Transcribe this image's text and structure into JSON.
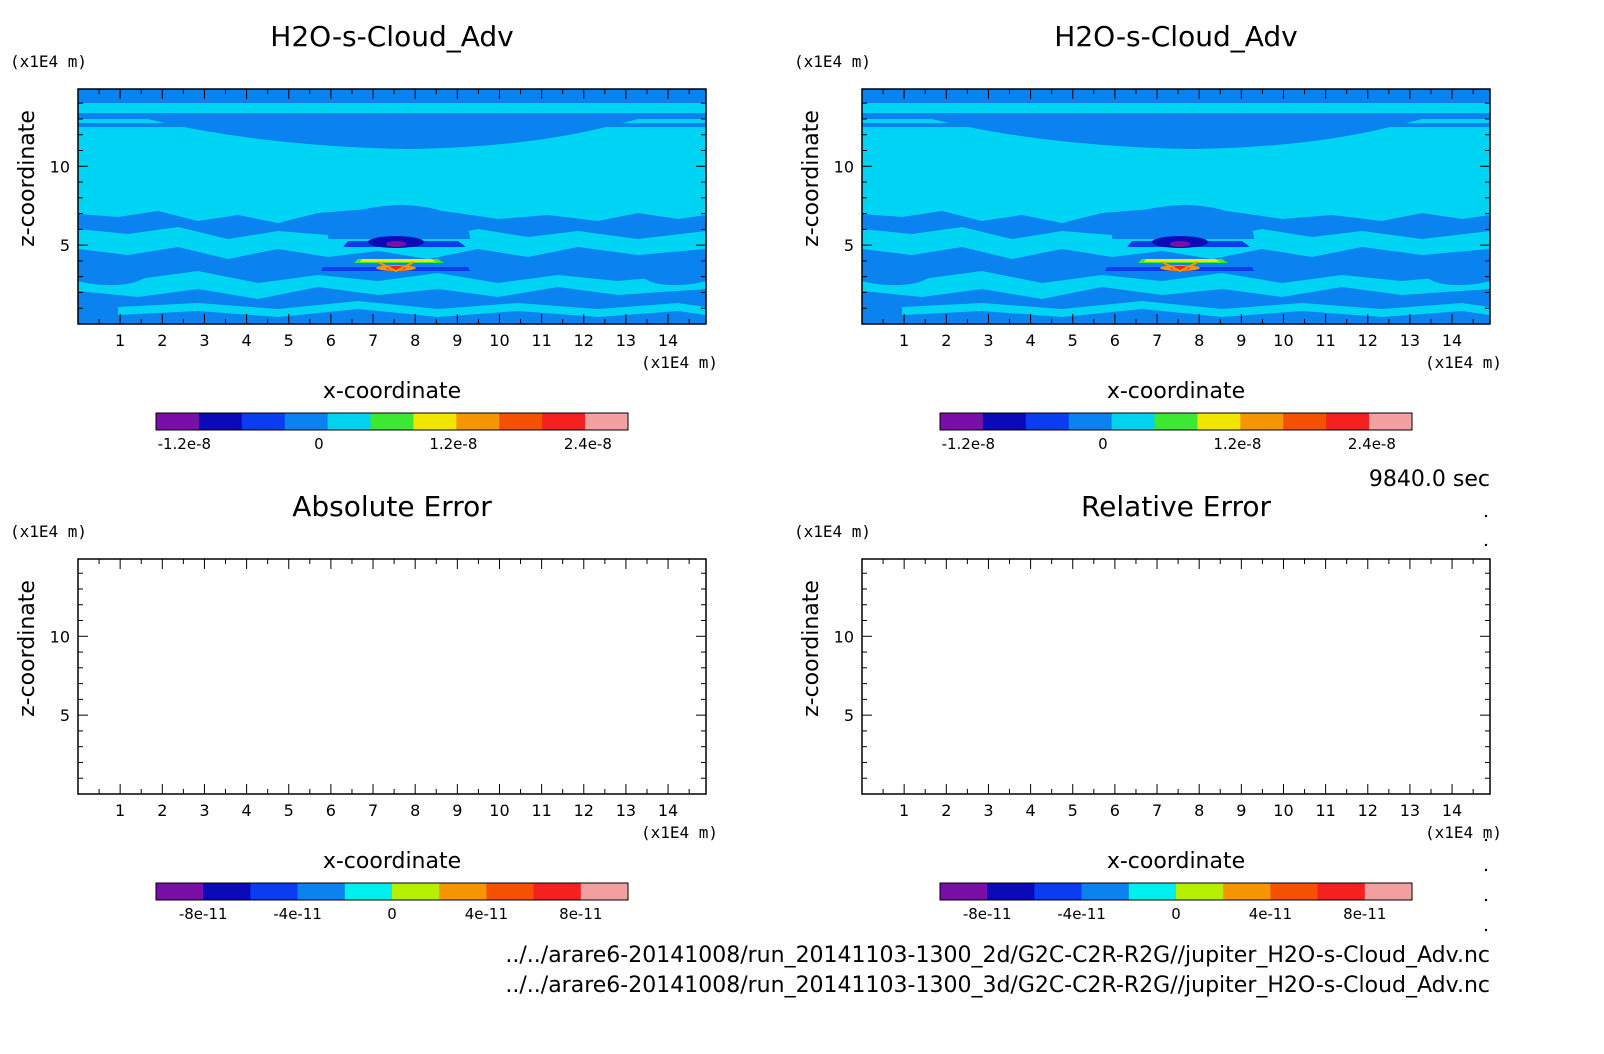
{
  "chart_data": [
    {
      "type": "heatmap",
      "title": "H2O-s-Cloud_Adv",
      "xlabel": "x-coordinate",
      "ylabel": "z-coordinate",
      "x_unit": "(x1E4 m)",
      "y_unit": "(x1E4 m)",
      "xlim": [
        0,
        14.9
      ],
      "ylim": [
        0,
        14.9
      ],
      "xticks": [
        "1",
        "2",
        "3",
        "4",
        "5",
        "6",
        "7",
        "8",
        "9",
        "10",
        "11",
        "12",
        "13",
        "14"
      ],
      "yticks": [
        "5",
        "10"
      ],
      "filled": true,
      "colorbar": {
        "colors": [
          "#7a0fa8",
          "#0a0ab8",
          "#0a3cf0",
          "#0a82f0",
          "#00d2f0",
          "#3ce832",
          "#f0e600",
          "#f59600",
          "#f55000",
          "#f52020",
          "#f5a0a0"
        ],
        "tick_labels": [
          "-1.2e-8",
          "0",
          "1.2e-8",
          "2.4e-8"
        ]
      },
      "features": [
        {
          "name": "background",
          "value_range": "~0 (light cyan)"
        },
        {
          "name": "upper band",
          "z_range": [
            12,
            14.5
          ],
          "value_range": "slightly negative (blue)"
        },
        {
          "name": "mid cloud",
          "x_center": 7.6,
          "z_center": 4.8,
          "value_range": "-1.2e-8 (purple core)"
        },
        {
          "name": "lower cloud",
          "x_center": 7.6,
          "z_center": 3.4,
          "value_range": "up to 2.4e-8 (yellow-red)"
        }
      ]
    },
    {
      "type": "heatmap",
      "title": "H2O-s-Cloud_Adv",
      "xlabel": "x-coordinate",
      "ylabel": "z-coordinate",
      "x_unit": "(x1E4 m)",
      "y_unit": "(x1E4 m)",
      "xlim": [
        0,
        14.9
      ],
      "ylim": [
        0,
        14.9
      ],
      "xticks": [
        "1",
        "2",
        "3",
        "4",
        "5",
        "6",
        "7",
        "8",
        "9",
        "10",
        "11",
        "12",
        "13",
        "14"
      ],
      "yticks": [
        "5",
        "10"
      ],
      "filled": true,
      "colorbar": {
        "colors": [
          "#7a0fa8",
          "#0a0ab8",
          "#0a3cf0",
          "#0a82f0",
          "#00d2f0",
          "#3ce832",
          "#f0e600",
          "#f59600",
          "#f55000",
          "#f52020",
          "#f5a0a0"
        ],
        "tick_labels": [
          "-1.2e-8",
          "0",
          "1.2e-8",
          "2.4e-8"
        ]
      }
    },
    {
      "type": "heatmap",
      "title": "Absolute Error",
      "xlabel": "x-coordinate",
      "ylabel": "z-coordinate",
      "x_unit": "(x1E4 m)",
      "y_unit": "(x1E4 m)",
      "xlim": [
        0,
        14.9
      ],
      "ylim": [
        0,
        14.9
      ],
      "xticks": [
        "1",
        "2",
        "3",
        "4",
        "5",
        "6",
        "7",
        "8",
        "9",
        "10",
        "11",
        "12",
        "13",
        "14"
      ],
      "yticks": [
        "5",
        "10"
      ],
      "filled": false,
      "colorbar": {
        "colors": [
          "#7a0fa8",
          "#0a0ab8",
          "#0a3cf0",
          "#0a82f0",
          "#00f0f0",
          "#b4f000",
          "#f59600",
          "#f55000",
          "#f52020",
          "#f5a0a0"
        ],
        "tick_labels": [
          "-8e-11",
          "-4e-11",
          "0",
          "4e-11",
          "8e-11"
        ]
      }
    },
    {
      "type": "heatmap",
      "title": "Relative Error",
      "xlabel": "x-coordinate",
      "ylabel": "z-coordinate",
      "x_unit": "(x1E4 m)",
      "y_unit": "(x1E4 m)",
      "xlim": [
        0,
        14.9
      ],
      "ylim": [
        0,
        14.9
      ],
      "xticks": [
        "1",
        "2",
        "3",
        "4",
        "5",
        "6",
        "7",
        "8",
        "9",
        "10",
        "11",
        "12",
        "13",
        "14"
      ],
      "yticks": [
        "5",
        "10"
      ],
      "filled": false,
      "colorbar": {
        "colors": [
          "#7a0fa8",
          "#0a0ab8",
          "#0a3cf0",
          "#0a82f0",
          "#00f0f0",
          "#b4f000",
          "#f59600",
          "#f55000",
          "#f52020",
          "#f5a0a0"
        ],
        "tick_labels": [
          "-8e-11",
          "-4e-11",
          "0",
          "4e-11",
          "8e-11"
        ]
      }
    }
  ],
  "time_label": "9840.0 sec",
  "files": [
    "../../arare6-20141008/run_20141103-1300_2d/G2C-C2R-R2G//jupiter_H2O-s-Cloud_Adv.nc",
    "../../arare6-20141008/run_20141103-1300_3d/G2C-C2R-R2G//jupiter_H2O-s-Cloud_Adv.nc"
  ]
}
